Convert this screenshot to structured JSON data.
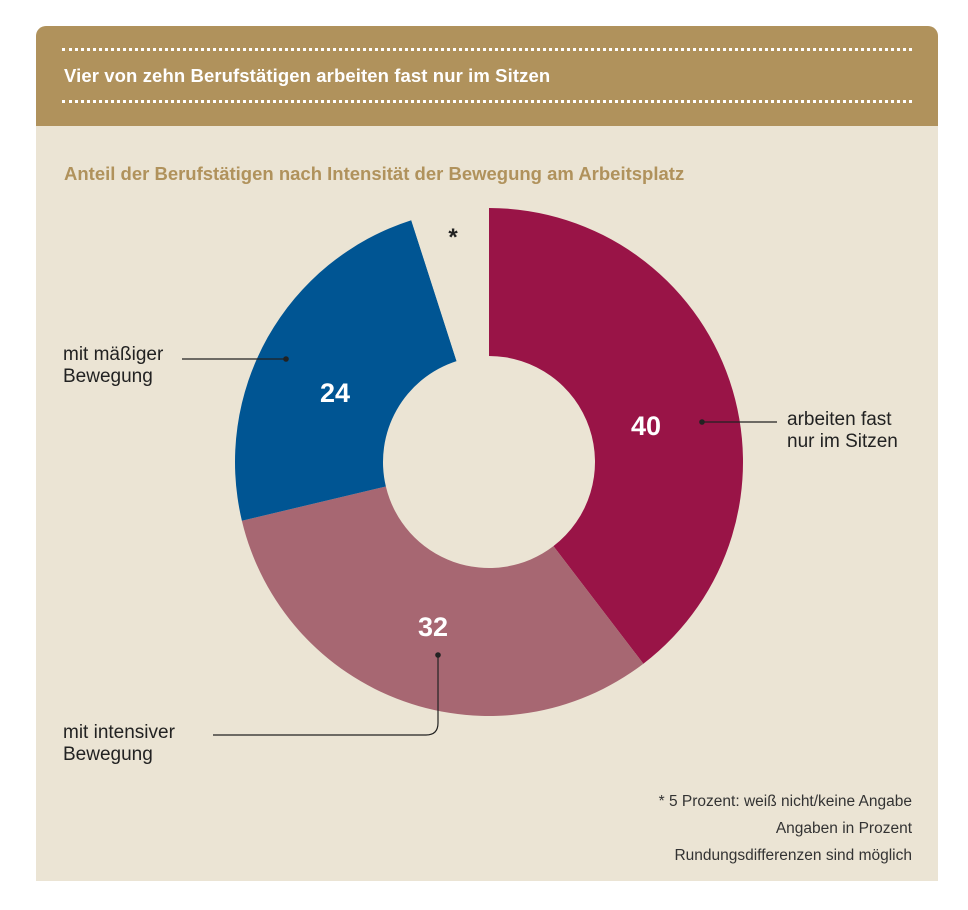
{
  "header": {
    "title": "Vier von zehn Berufstätigen arbeiten fast nur im Sitzen"
  },
  "subtitle": "Anteil der Berufstätigen nach Intensität der Bewegung am Arbeitsplatz",
  "notes": [
    "* 5 Prozent: weiß nicht/keine Angabe",
    "Angaben in Prozent",
    "Rundungsdifferenzen sind möglich"
  ],
  "colors": {
    "header_bg": "#b0925c",
    "panel_bg": "#ebe4d4",
    "sitting": "#991447",
    "intensive": "#a76772",
    "moderate": "#005593"
  },
  "chart_data": {
    "type": "pie",
    "variant": "donut",
    "title": "Anteil der Berufstätigen nach Intensität der Bewegung am Arbeitsplatz",
    "unit": "Prozent",
    "slices": [
      {
        "label": "arbeiten fast nur im Sitzen",
        "value": 40,
        "value_label": "40",
        "color": "#991447"
      },
      {
        "label": "mit intensiver Bewegung",
        "value": 32,
        "value_label": "32",
        "color": "#a76772"
      },
      {
        "label": "mit mäßiger Bewegung",
        "value": 24,
        "value_label": "24",
        "color": "#005593"
      },
      {
        "label": "*",
        "value": 5,
        "value_label": "*",
        "color": "#ebe4d4"
      }
    ],
    "callouts": [
      {
        "lines": [
          "arbeiten fast",
          "nur im Sitzen"
        ]
      },
      {
        "lines": [
          "mit intensiver",
          "Bewegung"
        ]
      },
      {
        "lines": [
          "mit mäßiger",
          "Bewegung"
        ]
      }
    ]
  }
}
